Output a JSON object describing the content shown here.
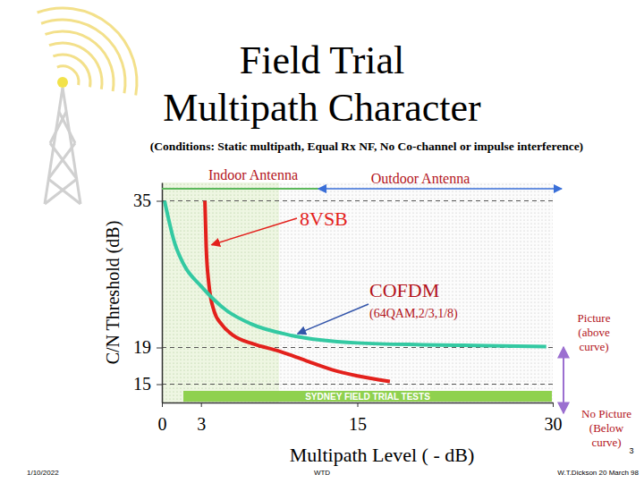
{
  "chart_data": {
    "type": "line",
    "title": [
      "Field Trial",
      "Multipath Character"
    ],
    "subtitle": "(Conditions: Static multipath, Equal Rx NF, No Co-channel or impulse interference)",
    "x_label": "Multipath Level ( - dB)",
    "y_label": "C/N Threshold (dB)",
    "xlim": [
      0,
      30
    ],
    "xticks": [
      0,
      3,
      15,
      30
    ],
    "ylim": [
      13,
      37
    ],
    "yticks": [
      15,
      19,
      35
    ],
    "grid": "y",
    "series": [
      {
        "name": "8VSB",
        "color": "#e3211c",
        "x": [
          3.3,
          3.4,
          3.6,
          4,
          4.6,
          5.5,
          7,
          9,
          11,
          13,
          15,
          17.5
        ],
        "values": [
          35,
          30,
          26,
          23,
          21.5,
          20.3,
          19.4,
          18.6,
          17.6,
          16.6,
          15.9,
          15.3
        ]
      },
      {
        "name": "COFDM",
        "color": "#33c9a2",
        "x": [
          0.2,
          1,
          1.7,
          3,
          5,
          6.8,
          10,
          15,
          20,
          25,
          29.5
        ],
        "values": [
          35,
          30.3,
          28,
          25.7,
          23,
          21.6,
          20.3,
          19.5,
          19.3,
          19.2,
          19.1
        ]
      }
    ],
    "annotations": [
      "Indoor Antenna",
      "Outdoor Antenna",
      "(64QAM,2/3,1/8)",
      [
        "Picture",
        "(above",
        "curve)"
      ],
      [
        "No Picture",
        "(Below",
        "curve)"
      ],
      "SYDNEY FIELD TRIAL TESTS"
    ],
    "footer": [
      "1/10/2022",
      "WTD",
      "W.T.Dickson 20 March 98",
      "3"
    ]
  }
}
